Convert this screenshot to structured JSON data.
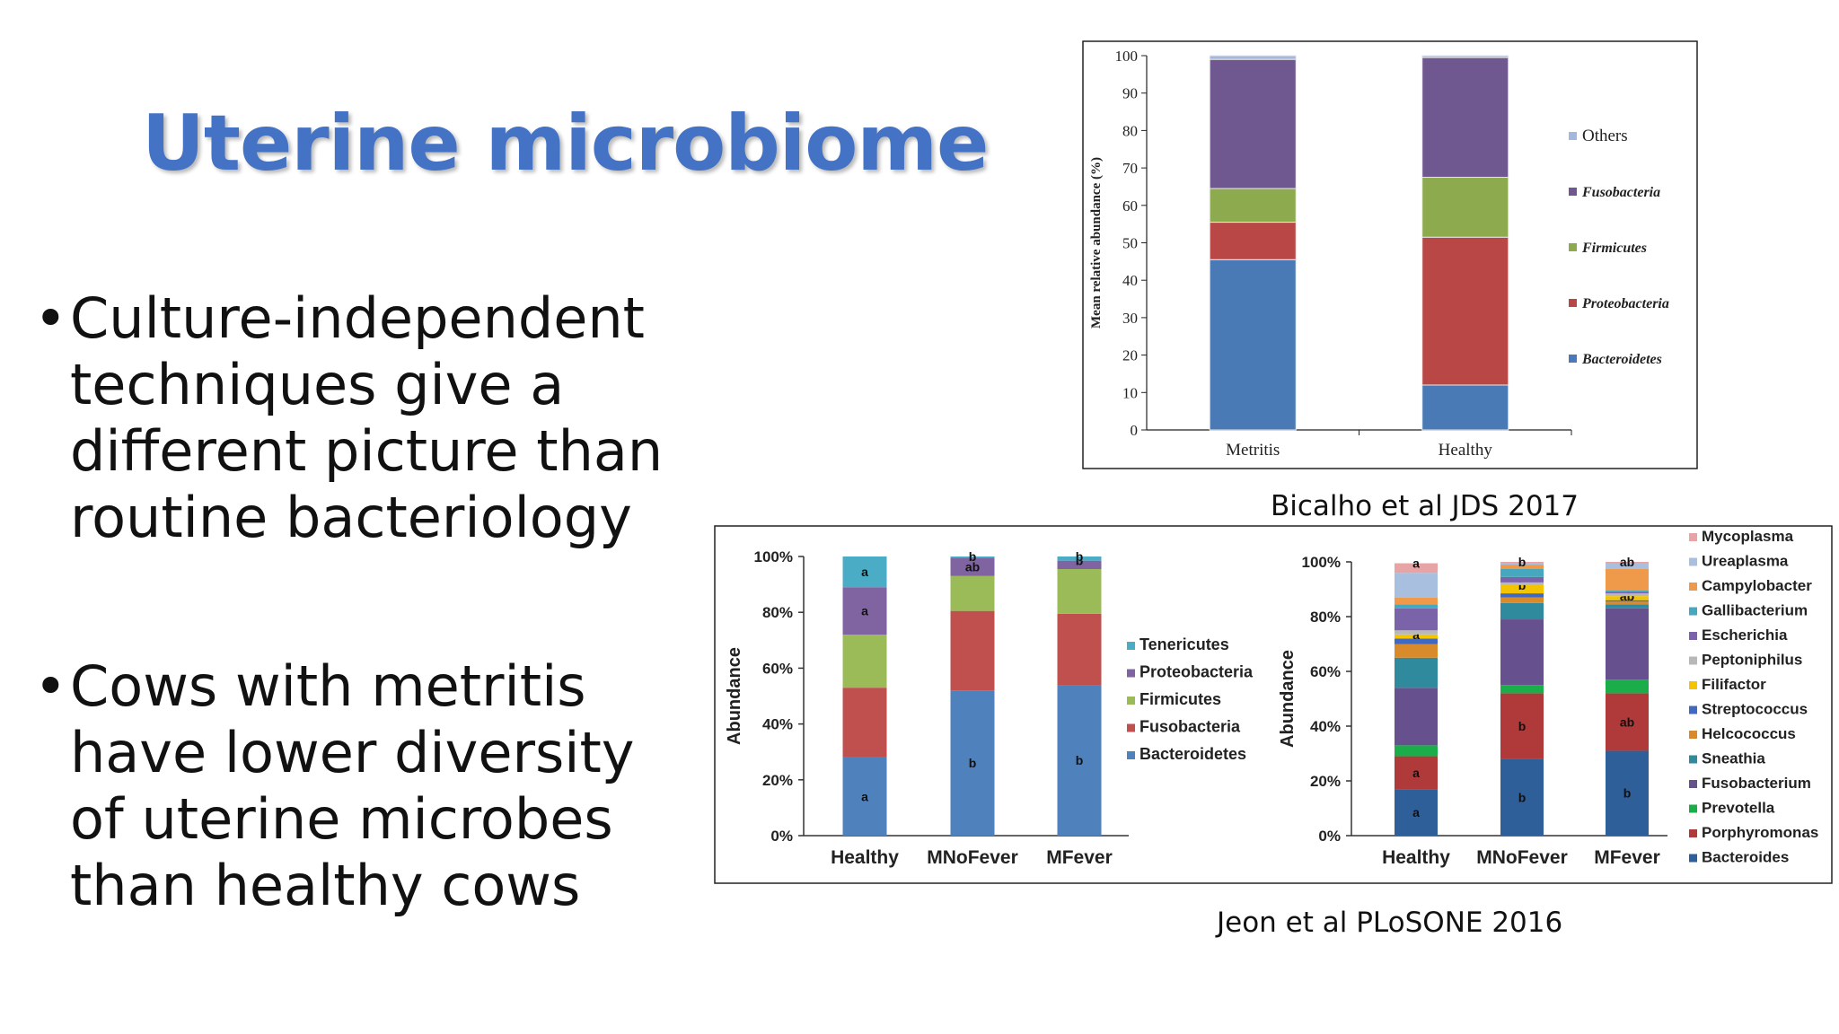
{
  "slide": {
    "title": "Uterine microbiome",
    "bullets": [
      {
        "lines": [
          "Culture-independent",
          "techniques give a",
          "different picture than",
          "routine bacteriology"
        ]
      },
      {
        "lines": [
          "Cows with metritis",
          "have lower diversity",
          "of uterine microbes",
          "than healthy cows"
        ]
      }
    ],
    "bullet_symbol": "•",
    "caption1": "Bicalho et al JDS 2017",
    "caption2": "Jeon et al PLoSONE 2016"
  },
  "chart_data": [
    {
      "type": "bar",
      "stacked": true,
      "categories": [
        "Metritis",
        "Healthy"
      ],
      "ylabel": "Mean relative abundance (%)",
      "ylim": [
        0,
        100
      ],
      "yticks": [
        0,
        10,
        20,
        30,
        40,
        50,
        60,
        70,
        80,
        90,
        100
      ],
      "legend_position": "right",
      "series": [
        {
          "name": "Bacteroidetes",
          "color": "#4a7ab5",
          "values": [
            45.5,
            12
          ]
        },
        {
          "name": "Proteobacteria",
          "color": "#b84745",
          "values": [
            10,
            39.5
          ]
        },
        {
          "name": "Firmicutes",
          "color": "#8daa4f",
          "values": [
            9,
            16
          ]
        },
        {
          "name": "Fusobacteria",
          "color": "#6f5790",
          "values": [
            34.5,
            32
          ]
        },
        {
          "name": "Others",
          "color": "#a3b8dc",
          "values": [
            1,
            0.5
          ]
        }
      ]
    },
    {
      "type": "bar",
      "stacked": true,
      "categories": [
        "Healthy",
        "MNoFever",
        "MFever"
      ],
      "ylabel": "Abundance",
      "ylim": [
        0,
        100
      ],
      "yticks": [
        "0%",
        "20%",
        "40%",
        "60%",
        "80%",
        "100%"
      ],
      "legend_position": "right",
      "series": [
        {
          "name": "Bacteroidetes",
          "color": "#4f81bd",
          "values": [
            28,
            52,
            54
          ],
          "labels": [
            "a",
            "b",
            "b"
          ]
        },
        {
          "name": "Fusobacteria",
          "color": "#c0504d",
          "values": [
            25,
            28.5,
            25.5
          ],
          "labels": [
            "",
            "",
            ""
          ]
        },
        {
          "name": "Firmicutes",
          "color": "#9bbb59",
          "values": [
            19,
            12.5,
            16
          ],
          "labels": [
            "",
            "",
            ""
          ]
        },
        {
          "name": "Proteobacteria",
          "color": "#8064a2",
          "values": [
            17,
            6.5,
            3
          ],
          "labels": [
            "a",
            "ab",
            "b"
          ]
        },
        {
          "name": "Tenericutes",
          "color": "#4bacc6",
          "values": [
            11,
            0.5,
            1.5
          ],
          "labels": [
            "a",
            "b",
            "b"
          ]
        }
      ]
    },
    {
      "type": "bar",
      "stacked": true,
      "categories": [
        "Healthy",
        "MNoFever",
        "MFever"
      ],
      "ylabel": "Abundance",
      "ylim": [
        0,
        100
      ],
      "yticks": [
        "0%",
        "20%",
        "40%",
        "60%",
        "80%",
        "100%"
      ],
      "legend_position": "right",
      "series": [
        {
          "name": "Bacteroides",
          "color": "#2e5f99",
          "values": [
            17,
            28,
            31
          ],
          "labels": [
            "a",
            "b",
            "b"
          ]
        },
        {
          "name": "Porphyromonas",
          "color": "#b03a3a",
          "values": [
            12,
            24,
            21
          ],
          "labels": [
            "a",
            "b",
            "ab"
          ]
        },
        {
          "name": "Prevotella",
          "color": "#1aad4a",
          "values": [
            4,
            3,
            5
          ],
          "labels": [
            "",
            "",
            ""
          ]
        },
        {
          "name": "Fusobacterium",
          "color": "#67508e",
          "values": [
            21,
            24,
            26
          ],
          "labels": [
            "",
            "",
            ""
          ]
        },
        {
          "name": "Sneathia",
          "color": "#2f8a9e",
          "values": [
            11,
            6,
            1.5
          ],
          "labels": [
            "",
            "",
            ""
          ]
        },
        {
          "name": "Helcococcus",
          "color": "#d98b2b",
          "values": [
            5,
            2,
            1
          ],
          "labels": [
            "",
            "",
            ""
          ]
        },
        {
          "name": "Streptococcus",
          "color": "#4169c1",
          "values": [
            2,
            1.5,
            0.5
          ],
          "labels": [
            "",
            "",
            ""
          ]
        },
        {
          "name": "Filifactor",
          "color": "#f5c400",
          "values": [
            1.5,
            3,
            1.5
          ],
          "labels": [
            "a",
            "b",
            "ab"
          ]
        },
        {
          "name": "Peptoniphilus",
          "color": "#b8b8b8",
          "values": [
            1.5,
            1,
            1
          ],
          "labels": [
            "",
            "",
            ""
          ]
        },
        {
          "name": "Escherichia",
          "color": "#7a63a8",
          "values": [
            8,
            2,
            0.5
          ],
          "labels": [
            "",
            "",
            ""
          ]
        },
        {
          "name": "Gallibacterium",
          "color": "#45a8bf",
          "values": [
            1.5,
            3,
            0.5
          ],
          "labels": [
            "",
            "",
            ""
          ]
        },
        {
          "name": "Campylobacter",
          "color": "#ee9a4a",
          "values": [
            2.5,
            1.5,
            8
          ],
          "labels": [
            "",
            "",
            ""
          ]
        },
        {
          "name": "Ureaplasma",
          "color": "#a9bfe0",
          "values": [
            9,
            0.5,
            2
          ],
          "labels": [
            "",
            "",
            ""
          ]
        },
        {
          "name": "Mycoplasma",
          "color": "#e8a4a4",
          "values": [
            3.5,
            0.5,
            0.5
          ],
          "labels": [
            "a",
            "b",
            "ab"
          ]
        }
      ]
    }
  ]
}
